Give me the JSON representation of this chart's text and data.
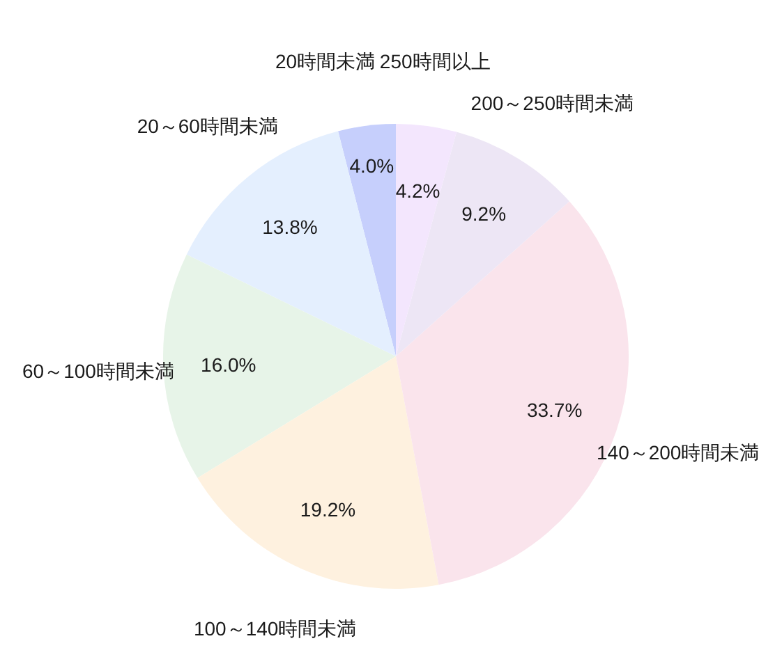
{
  "chart_data": {
    "type": "pie",
    "categories": [
      "20時間未満",
      "20～60時間未満",
      "60～100時間未満",
      "100～140時間未満",
      "140～200時間未満",
      "200～250時間未満",
      "250時間以上"
    ],
    "values": [
      4.0,
      13.8,
      16.0,
      19.2,
      33.7,
      9.2,
      4.2
    ],
    "value_labels": [
      "4.0%",
      "13.8%",
      "16.0%",
      "19.2%",
      "33.7%",
      "9.2%",
      "4.2%"
    ],
    "colors": [
      "#c6cffc",
      "#e4effe",
      "#e7f4e8",
      "#fef1df",
      "#fae4ec",
      "#ede6f5",
      "#f3e6fd"
    ]
  }
}
